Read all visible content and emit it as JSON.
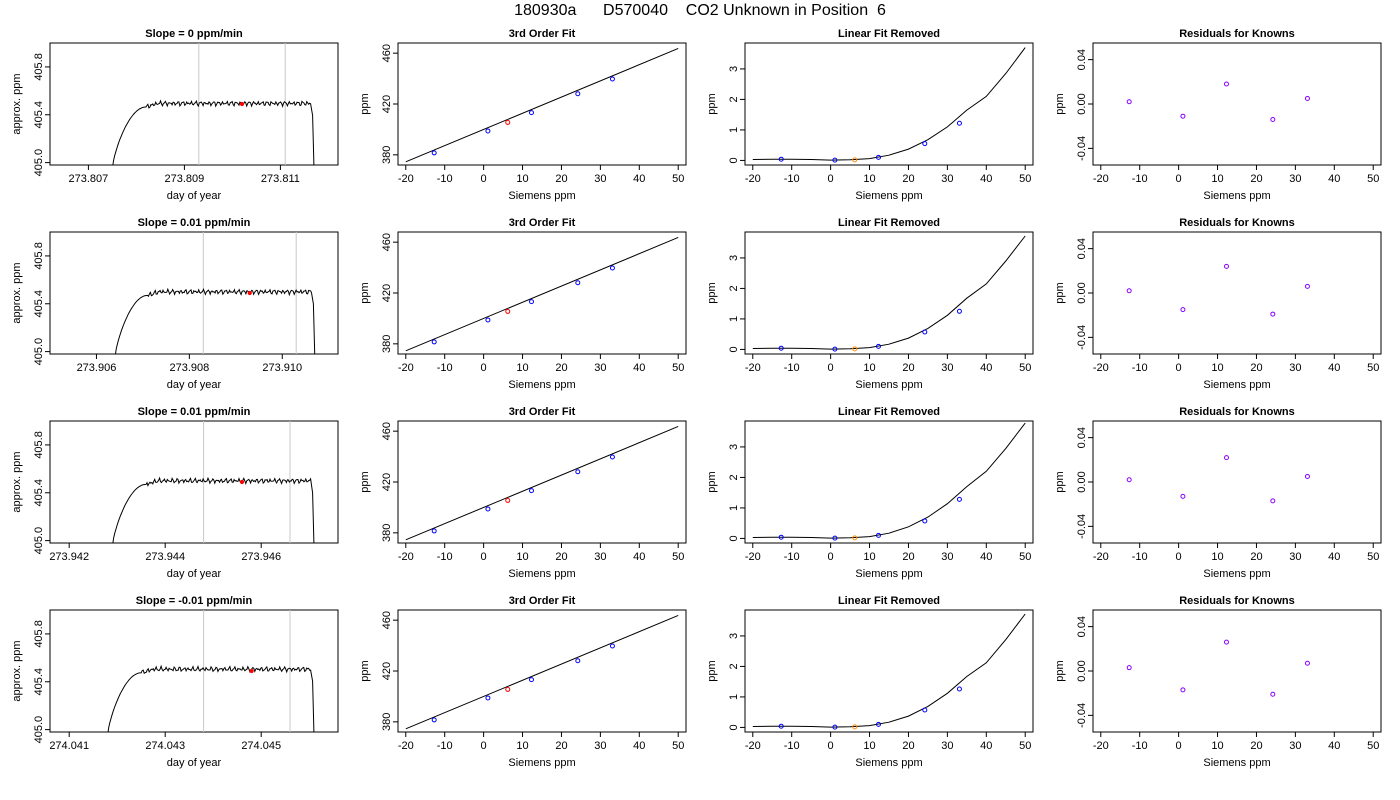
{
  "header": {
    "title": "180930a      D570040    CO2 Unknown in Position  6"
  },
  "colors": {
    "line": "#000000",
    "known_point": "#0000ff",
    "unknown_point_fit": "#ff0000",
    "unknown_point_removed": "#ff8c00",
    "residual_point": "#8b00ff",
    "window_line": "#c8c8c8"
  },
  "chart_data": [
    {
      "id": "r0c0",
      "type": "line",
      "title": "Slope =  0  ppm/min",
      "xlabel": "day of year",
      "ylabel": "approx. ppm",
      "xlim": [
        273.8062,
        273.8122
      ],
      "ylim": [
        404.98,
        406.0
      ],
      "xticks": [
        273.807,
        273.809,
        273.811
      ],
      "xtick_labels": [
        "273.807",
        "273.809",
        "273.811"
      ],
      "yticks": [
        405.0,
        405.4,
        405.8
      ],
      "ytick_labels": [
        "405.0",
        "405.4",
        "405.8"
      ],
      "trace": {
        "start": 273.8075,
        "rise_end": 273.8082,
        "end": 273.8117,
        "plateau": 405.495,
        "base": 404.95
      },
      "window": [
        273.8093,
        273.8111
      ],
      "marker": {
        "x": 273.8102,
        "y": 405.49
      }
    },
    {
      "id": "r0c1",
      "type": "line",
      "title": "3rd Order Fit",
      "xlabel": "Siemens ppm",
      "ylabel": "ppm",
      "xlim": [
        -22,
        52
      ],
      "ylim": [
        372,
        468
      ],
      "xticks": [
        -20,
        -10,
        0,
        10,
        20,
        30,
        40,
        50
      ],
      "xtick_labels": [
        "-20",
        "-10",
        "0",
        "10",
        "20",
        "30",
        "40",
        "50"
      ],
      "yticks": [
        380,
        420,
        460
      ],
      "ytick_labels": [
        "380",
        "420",
        "460"
      ],
      "fit": {
        "x0": -20,
        "y0": 374.5,
        "x1": 50,
        "y1": 463.7
      },
      "knowns": [
        [
          -12.7,
          381.5
        ],
        [
          1.1,
          398.8
        ],
        [
          12.3,
          413.2
        ],
        [
          24.2,
          428.1
        ],
        [
          33.1,
          439.7
        ]
      ],
      "unknown": [
        6.2,
        405.5
      ]
    },
    {
      "id": "r0c2",
      "type": "line",
      "title": "Linear Fit Removed",
      "xlabel": "Siemens ppm",
      "ylabel": "ppm",
      "xlim": [
        -22,
        52
      ],
      "ylim": [
        -0.15,
        3.85
      ],
      "xticks": [
        -20,
        -10,
        0,
        10,
        20,
        30,
        40,
        50
      ],
      "xtick_labels": [
        "-20",
        "-10",
        "0",
        "10",
        "20",
        "30",
        "40",
        "50"
      ],
      "yticks": [
        0,
        1,
        2,
        3
      ],
      "ytick_labels": [
        "0",
        "1",
        "2",
        "3"
      ],
      "curve": [
        [
          -20,
          0.03
        ],
        [
          -15,
          0.04
        ],
        [
          -10,
          0.04
        ],
        [
          -5,
          0.03
        ],
        [
          0,
          0.01
        ],
        [
          5,
          0.02
        ],
        [
          10,
          0.06
        ],
        [
          15,
          0.17
        ],
        [
          20,
          0.37
        ],
        [
          25,
          0.68
        ],
        [
          30,
          1.1
        ],
        [
          35,
          1.65
        ],
        [
          40,
          2.1
        ],
        [
          45,
          2.85
        ],
        [
          50,
          3.7
        ]
      ],
      "knowns": [
        [
          -12.7,
          0.04
        ],
        [
          1.1,
          0.01
        ],
        [
          12.3,
          0.1
        ],
        [
          24.2,
          0.55
        ],
        [
          33.1,
          1.22
        ]
      ],
      "unknown": [
        6.2,
        0.02
      ]
    },
    {
      "id": "r0c3",
      "type": "scatter",
      "title": "Residuals for Knowns",
      "xlabel": "Siemens ppm",
      "ylabel": "ppm",
      "xlim": [
        -22,
        52
      ],
      "ylim": [
        -0.055,
        0.055
      ],
      "xticks": [
        -20,
        -10,
        0,
        10,
        20,
        30,
        40,
        50
      ],
      "xtick_labels": [
        "-20",
        "-10",
        "0",
        "10",
        "20",
        "30",
        "40",
        "50"
      ],
      "yticks": [
        -0.04,
        0.0,
        0.04
      ],
      "ytick_labels": [
        "-0.04",
        "0.00",
        "0.04"
      ],
      "points": [
        [
          -12.7,
          0.002
        ],
        [
          1.1,
          -0.011
        ],
        [
          12.3,
          0.018
        ],
        [
          24.2,
          -0.014
        ],
        [
          33.1,
          0.005
        ]
      ]
    },
    {
      "id": "r1c0",
      "type": "line",
      "title": "Slope =  0.01  ppm/min",
      "xlabel": "day of year",
      "ylabel": "approx. ppm",
      "xlim": [
        273.905,
        273.9112
      ],
      "ylim": [
        404.98,
        406.0
      ],
      "xticks": [
        273.906,
        273.908,
        273.91
      ],
      "xtick_labels": [
        "273.906",
        "273.908",
        "273.910"
      ],
      "yticks": [
        405.0,
        405.4,
        405.8
      ],
      "ytick_labels": [
        "405.0",
        "405.4",
        "405.8"
      ],
      "trace": {
        "start": 273.9064,
        "rise_end": 273.9071,
        "end": 273.9107,
        "plateau": 405.5,
        "base": 404.95
      },
      "window": [
        273.9083,
        273.9103
      ],
      "marker": {
        "x": 273.9093,
        "y": 405.49
      }
    },
    {
      "id": "r1c1",
      "type": "line",
      "title": "3rd Order Fit",
      "xlabel": "Siemens ppm",
      "ylabel": "ppm",
      "xlim": [
        -22,
        52
      ],
      "ylim": [
        372,
        468
      ],
      "xticks": [
        -20,
        -10,
        0,
        10,
        20,
        30,
        40,
        50
      ],
      "xtick_labels": [
        "-20",
        "-10",
        "0",
        "10",
        "20",
        "30",
        "40",
        "50"
      ],
      "yticks": [
        380,
        420,
        460
      ],
      "ytick_labels": [
        "380",
        "420",
        "460"
      ],
      "fit": {
        "x0": -20,
        "y0": 374.5,
        "x1": 50,
        "y1": 463.7
      },
      "knowns": [
        [
          -12.7,
          381.5
        ],
        [
          1.1,
          398.8
        ],
        [
          12.3,
          413.2
        ],
        [
          24.2,
          428.1
        ],
        [
          33.1,
          439.7
        ]
      ],
      "unknown": [
        6.2,
        405.5
      ]
    },
    {
      "id": "r1c2",
      "type": "line",
      "title": "Linear Fit Removed",
      "xlabel": "Siemens ppm",
      "ylabel": "ppm",
      "xlim": [
        -22,
        52
      ],
      "ylim": [
        -0.15,
        3.85
      ],
      "xticks": [
        -20,
        -10,
        0,
        10,
        20,
        30,
        40,
        50
      ],
      "xtick_labels": [
        "-20",
        "-10",
        "0",
        "10",
        "20",
        "30",
        "40",
        "50"
      ],
      "yticks": [
        0,
        1,
        2,
        3
      ],
      "ytick_labels": [
        "0",
        "1",
        "2",
        "3"
      ],
      "curve": [
        [
          -20,
          0.03
        ],
        [
          -15,
          0.04
        ],
        [
          -10,
          0.04
        ],
        [
          -5,
          0.03
        ],
        [
          0,
          0.01
        ],
        [
          5,
          0.02
        ],
        [
          10,
          0.06
        ],
        [
          15,
          0.17
        ],
        [
          20,
          0.37
        ],
        [
          25,
          0.69
        ],
        [
          30,
          1.12
        ],
        [
          35,
          1.68
        ],
        [
          40,
          2.15
        ],
        [
          45,
          2.9
        ],
        [
          50,
          3.72
        ]
      ],
      "knowns": [
        [
          -12.7,
          0.04
        ],
        [
          1.1,
          0.01
        ],
        [
          12.3,
          0.1
        ],
        [
          24.2,
          0.57
        ],
        [
          33.1,
          1.25
        ]
      ],
      "unknown": [
        6.2,
        0.02
      ]
    },
    {
      "id": "r1c3",
      "type": "scatter",
      "title": "Residuals for Knowns",
      "xlabel": "Siemens ppm",
      "ylabel": "ppm",
      "xlim": [
        -22,
        52
      ],
      "ylim": [
        -0.055,
        0.055
      ],
      "xticks": [
        -20,
        -10,
        0,
        10,
        20,
        30,
        40,
        50
      ],
      "xtick_labels": [
        "-20",
        "-10",
        "0",
        "10",
        "20",
        "30",
        "40",
        "50"
      ],
      "yticks": [
        -0.04,
        0.0,
        0.04
      ],
      "ytick_labels": [
        "-0.04",
        "0.00",
        "0.04"
      ],
      "points": [
        [
          -12.7,
          0.002
        ],
        [
          1.1,
          -0.015
        ],
        [
          12.3,
          0.024
        ],
        [
          24.2,
          -0.019
        ],
        [
          33.1,
          0.006
        ]
      ]
    },
    {
      "id": "r2c0",
      "type": "line",
      "title": "Slope =  0.01  ppm/min",
      "xlabel": "day of year",
      "ylabel": "approx. ppm",
      "xlim": [
        273.9416,
        273.9476
      ],
      "ylim": [
        404.98,
        406.0
      ],
      "xticks": [
        273.942,
        273.944,
        273.946
      ],
      "xtick_labels": [
        "273.942",
        "273.944",
        "273.946"
      ],
      "yticks": [
        405.0,
        405.4,
        405.8
      ],
      "ytick_labels": [
        "405.0",
        "405.4",
        "405.8"
      ],
      "trace": {
        "start": 273.9429,
        "rise_end": 273.9436,
        "end": 273.9471,
        "plateau": 405.5,
        "base": 404.95
      },
      "window": [
        273.9448,
        273.9466
      ],
      "marker": {
        "x": 273.9456,
        "y": 405.49
      }
    },
    {
      "id": "r2c1",
      "type": "line",
      "title": "3rd Order Fit",
      "xlabel": "Siemens ppm",
      "ylabel": "ppm",
      "xlim": [
        -22,
        52
      ],
      "ylim": [
        372,
        468
      ],
      "xticks": [
        -20,
        -10,
        0,
        10,
        20,
        30,
        40,
        50
      ],
      "xtick_labels": [
        "-20",
        "-10",
        "0",
        "10",
        "20",
        "30",
        "40",
        "50"
      ],
      "yticks": [
        380,
        420,
        460
      ],
      "ytick_labels": [
        "380",
        "420",
        "460"
      ],
      "fit": {
        "x0": -20,
        "y0": 374.5,
        "x1": 50,
        "y1": 463.7
      },
      "knowns": [
        [
          -12.7,
          381.5
        ],
        [
          1.1,
          398.8
        ],
        [
          12.3,
          413.2
        ],
        [
          24.2,
          428.1
        ],
        [
          33.1,
          439.7
        ]
      ],
      "unknown": [
        6.2,
        405.5
      ]
    },
    {
      "id": "r2c2",
      "type": "line",
      "title": "Linear Fit Removed",
      "xlabel": "Siemens ppm",
      "ylabel": "ppm",
      "xlim": [
        -22,
        52
      ],
      "ylim": [
        -0.15,
        3.85
      ],
      "xticks": [
        -20,
        -10,
        0,
        10,
        20,
        30,
        40,
        50
      ],
      "xtick_labels": [
        "-20",
        "-10",
        "0",
        "10",
        "20",
        "30",
        "40",
        "50"
      ],
      "yticks": [
        0,
        1,
        2,
        3
      ],
      "ytick_labels": [
        "0",
        "1",
        "2",
        "3"
      ],
      "curve": [
        [
          -20,
          0.03
        ],
        [
          -15,
          0.04
        ],
        [
          -10,
          0.04
        ],
        [
          -5,
          0.03
        ],
        [
          0,
          0.01
        ],
        [
          5,
          0.02
        ],
        [
          10,
          0.06
        ],
        [
          15,
          0.17
        ],
        [
          20,
          0.38
        ],
        [
          25,
          0.7
        ],
        [
          30,
          1.14
        ],
        [
          35,
          1.7
        ],
        [
          40,
          2.2
        ],
        [
          45,
          2.95
        ],
        [
          50,
          3.78
        ]
      ],
      "knowns": [
        [
          -12.7,
          0.04
        ],
        [
          1.1,
          0.01
        ],
        [
          12.3,
          0.1
        ],
        [
          24.2,
          0.57
        ],
        [
          33.1,
          1.28
        ]
      ],
      "unknown": [
        6.2,
        0.02
      ]
    },
    {
      "id": "r2c3",
      "type": "scatter",
      "title": "Residuals for Knowns",
      "xlabel": "Siemens ppm",
      "ylabel": "ppm",
      "xlim": [
        -22,
        52
      ],
      "ylim": [
        -0.055,
        0.055
      ],
      "xticks": [
        -20,
        -10,
        0,
        10,
        20,
        30,
        40,
        50
      ],
      "xtick_labels": [
        "-20",
        "-10",
        "0",
        "10",
        "20",
        "30",
        "40",
        "50"
      ],
      "yticks": [
        -0.04,
        0.0,
        0.04
      ],
      "ytick_labels": [
        "-0.04",
        "0.00",
        "0.04"
      ],
      "points": [
        [
          -12.7,
          0.002
        ],
        [
          1.1,
          -0.013
        ],
        [
          12.3,
          0.022
        ],
        [
          24.2,
          -0.017
        ],
        [
          33.1,
          0.005
        ]
      ]
    },
    {
      "id": "r3c0",
      "type": "line",
      "title": "Slope =  -0.01  ppm/min",
      "xlabel": "day of year",
      "ylabel": "approx. ppm",
      "xlim": [
        274.0406,
        274.0466
      ],
      "ylim": [
        404.98,
        406.0
      ],
      "xticks": [
        274.041,
        274.043,
        274.045
      ],
      "xtick_labels": [
        "274.041",
        "274.043",
        "274.045"
      ],
      "yticks": [
        405.0,
        405.4,
        405.8
      ],
      "ytick_labels": [
        "405.0",
        "405.4",
        "405.8"
      ],
      "trace": {
        "start": 274.0418,
        "rise_end": 274.0425,
        "end": 274.0461,
        "plateau": 405.505,
        "base": 404.95
      },
      "window": [
        274.0438,
        274.0456
      ],
      "marker": {
        "x": 274.0448,
        "y": 405.49
      }
    },
    {
      "id": "r3c1",
      "type": "line",
      "title": "3rd Order Fit",
      "xlabel": "Siemens ppm",
      "ylabel": "ppm",
      "xlim": [
        -22,
        52
      ],
      "ylim": [
        372,
        468
      ],
      "xticks": [
        -20,
        -10,
        0,
        10,
        20,
        30,
        40,
        50
      ],
      "xtick_labels": [
        "-20",
        "-10",
        "0",
        "10",
        "20",
        "30",
        "40",
        "50"
      ],
      "yticks": [
        380,
        420,
        460
      ],
      "ytick_labels": [
        "380",
        "420",
        "460"
      ],
      "fit": {
        "x0": -20,
        "y0": 374.5,
        "x1": 50,
        "y1": 463.7
      },
      "knowns": [
        [
          -12.7,
          381.5
        ],
        [
          1.1,
          398.8
        ],
        [
          12.3,
          413.2
        ],
        [
          24.2,
          428.1
        ],
        [
          33.1,
          439.7
        ]
      ],
      "unknown": [
        6.2,
        405.5
      ]
    },
    {
      "id": "r3c2",
      "type": "line",
      "title": "Linear Fit Removed",
      "xlabel": "Siemens ppm",
      "ylabel": "ppm",
      "xlim": [
        -22,
        52
      ],
      "ylim": [
        -0.15,
        3.85
      ],
      "xticks": [
        -20,
        -10,
        0,
        10,
        20,
        30,
        40,
        50
      ],
      "xtick_labels": [
        "-20",
        "-10",
        "0",
        "10",
        "20",
        "30",
        "40",
        "50"
      ],
      "yticks": [
        0,
        1,
        2,
        3
      ],
      "ytick_labels": [
        "0",
        "1",
        "2",
        "3"
      ],
      "curve": [
        [
          -20,
          0.03
        ],
        [
          -15,
          0.04
        ],
        [
          -10,
          0.04
        ],
        [
          -5,
          0.03
        ],
        [
          0,
          0.01
        ],
        [
          5,
          0.02
        ],
        [
          10,
          0.06
        ],
        [
          15,
          0.17
        ],
        [
          20,
          0.37
        ],
        [
          25,
          0.69
        ],
        [
          30,
          1.12
        ],
        [
          35,
          1.67
        ],
        [
          40,
          2.12
        ],
        [
          45,
          2.88
        ],
        [
          50,
          3.72
        ]
      ],
      "knowns": [
        [
          -12.7,
          0.04
        ],
        [
          1.1,
          0.01
        ],
        [
          12.3,
          0.1
        ],
        [
          24.2,
          0.57
        ],
        [
          33.1,
          1.26
        ]
      ],
      "unknown": [
        6.2,
        0.02
      ]
    },
    {
      "id": "r3c3",
      "type": "scatter",
      "title": "Residuals for Knowns",
      "xlabel": "Siemens ppm",
      "ylabel": "ppm",
      "xlim": [
        -22,
        52
      ],
      "ylim": [
        -0.055,
        0.055
      ],
      "xticks": [
        -20,
        -10,
        0,
        10,
        20,
        30,
        40,
        50
      ],
      "xtick_labels": [
        "-20",
        "-10",
        "0",
        "10",
        "20",
        "30",
        "40",
        "50"
      ],
      "yticks": [
        -0.04,
        0.0,
        0.04
      ],
      "ytick_labels": [
        "-0.04",
        "0.00",
        "0.04"
      ],
      "points": [
        [
          -12.7,
          0.003
        ],
        [
          1.1,
          -0.017
        ],
        [
          12.3,
          0.026
        ],
        [
          24.2,
          -0.021
        ],
        [
          33.1,
          0.007
        ]
      ]
    }
  ]
}
